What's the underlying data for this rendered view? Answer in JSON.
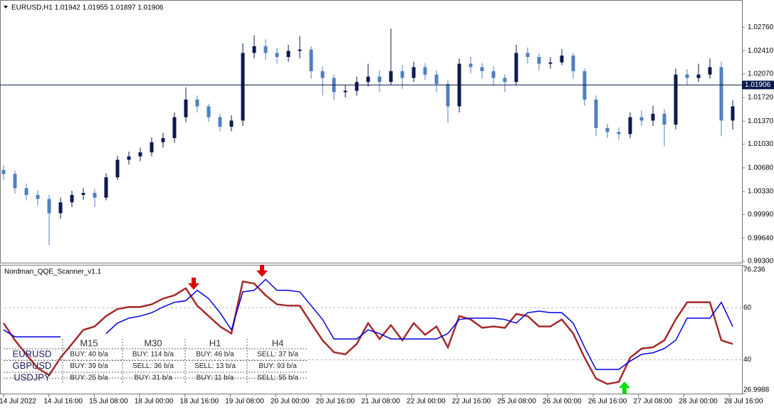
{
  "header": {
    "symbol_info": "EURUSD,H1  1.01942 1.01955 1.01897 1.01906"
  },
  "chart_data": [
    {
      "type": "candlestick",
      "up_color": "#0b1a4e",
      "down_color": "#4f7fc0",
      "open": [
        1.0065,
        1.0059,
        1.0038,
        1.0028,
        1.0022,
        1.0001,
        1.0017,
        1.0028,
        1.0031,
        1.0024,
        1.0054,
        1.008,
        1.0085,
        1.0091,
        1.0106,
        1.0112,
        1.0143,
        1.0169,
        1.0159,
        1.0143,
        1.0129,
        1.0138,
        1.0238,
        1.0248,
        1.0238,
        1.0232,
        1.0241,
        1.0243,
        1.0211,
        1.0201,
        1.018,
        1.0182,
        1.0195,
        1.0203,
        1.0195,
        1.0211,
        1.0201,
        1.0217,
        1.0206,
        1.0192,
        1.0159,
        1.0222,
        1.0217,
        1.0211,
        1.0201,
        1.0195,
        1.0238,
        1.0232,
        1.0222,
        1.0224,
        1.0234,
        1.0211,
        1.0169,
        1.0127,
        1.0121,
        1.0118,
        1.0143,
        1.0138,
        1.0148,
        1.0132,
        1.0206,
        1.0201,
        1.0206,
        1.0217,
        1.0138
      ],
      "high": [
        1.0072,
        1.0064,
        1.0045,
        1.0035,
        1.0028,
        1.0024,
        1.0034,
        1.0038,
        1.0037,
        1.006,
        1.0086,
        1.0092,
        1.0098,
        1.0113,
        1.012,
        1.015,
        1.0187,
        1.0175,
        1.0163,
        1.0148,
        1.0146,
        1.0252,
        1.0264,
        1.0258,
        1.0245,
        1.025,
        1.0263,
        1.0248,
        1.0218,
        1.0206,
        1.019,
        1.0203,
        1.0222,
        1.0212,
        1.0274,
        1.022,
        1.0225,
        1.0223,
        1.0212,
        1.0198,
        1.023,
        1.0232,
        1.0223,
        1.0218,
        1.0206,
        1.025,
        1.0246,
        1.0238,
        1.0232,
        1.0244,
        1.0238,
        1.0215,
        1.0175,
        1.0133,
        1.0128,
        1.015,
        1.0153,
        1.016,
        1.0155,
        1.0215,
        1.0214,
        1.0222,
        1.023,
        1.0225,
        1.0168
      ],
      "low": [
        1.005,
        1.003,
        1.002,
        1.0012,
        0.9954,
        0.9993,
        1.001,
        1.0021,
        1.001,
        1.002,
        1.005,
        1.0073,
        1.0078,
        1.0085,
        1.0098,
        1.0105,
        1.0136,
        1.015,
        1.0136,
        1.0122,
        1.0122,
        1.013,
        1.023,
        1.0228,
        1.0222,
        1.0225,
        1.023,
        1.02,
        1.0175,
        1.0168,
        1.0172,
        1.0175,
        1.0188,
        1.018,
        1.019,
        1.0185,
        1.0195,
        1.0198,
        1.018,
        1.0135,
        1.015,
        1.0208,
        1.02,
        1.019,
        1.018,
        1.019,
        1.0222,
        1.0212,
        1.0215,
        1.022,
        1.02,
        1.016,
        1.0115,
        1.0112,
        1.011,
        1.0112,
        1.013,
        1.013,
        1.01,
        1.0125,
        1.019,
        1.0195,
        1.02,
        1.0115,
        1.0125
      ],
      "close": [
        1.0059,
        1.0038,
        1.0028,
        1.0022,
        1.0001,
        1.0017,
        1.0028,
        1.0031,
        1.0024,
        1.0054,
        1.008,
        1.0085,
        1.0091,
        1.0106,
        1.0112,
        1.0143,
        1.0169,
        1.0159,
        1.0143,
        1.0129,
        1.0138,
        1.0238,
        1.0248,
        1.0238,
        1.0232,
        1.0241,
        1.0243,
        1.0211,
        1.0201,
        1.018,
        1.0182,
        1.0195,
        1.0203,
        1.0195,
        1.0211,
        1.0201,
        1.0217,
        1.0206,
        1.0192,
        1.0159,
        1.0222,
        1.0217,
        1.0211,
        1.0201,
        1.0195,
        1.0238,
        1.0232,
        1.0222,
        1.0224,
        1.0234,
        1.0211,
        1.0169,
        1.0127,
        1.0121,
        1.0118,
        1.0143,
        1.0138,
        1.0148,
        1.0132,
        1.0206,
        1.0201,
        1.0206,
        1.0217,
        1.0138,
        1.0159
      ],
      "ylim": [
        0.99268,
        1.0311
      ],
      "yticks": [
        {
          "value": 1.0276,
          "label": "1.02760"
        },
        {
          "value": 1.0241,
          "label": "1.02410"
        },
        {
          "value": 1.0207,
          "label": "1.02070"
        },
        {
          "value": 1.0172,
          "label": "1.01720"
        },
        {
          "value": 1.0137,
          "label": "1.01370"
        },
        {
          "value": 1.0103,
          "label": "1.01030"
        },
        {
          "value": 1.0068,
          "label": "1.00680"
        },
        {
          "value": 1.0033,
          "label": "1.00330"
        },
        {
          "value": 0.9999,
          "label": "0.99990"
        },
        {
          "value": 0.9964,
          "label": "0.99640"
        },
        {
          "value": 0.993,
          "label": "0.99300"
        }
      ],
      "current_price": {
        "value": 1.01906,
        "label": "1.01906"
      },
      "x_labels": [
        "14 Jul 2022",
        "14 Jul 16:00",
        "15 Jul 08:00",
        "18 Jul 00:00",
        "18 Jul 16:00",
        "19 Jul 08:00",
        "20 Jul 00:00",
        "20 Jul 16:00",
        "21 Jul 08:00",
        "22 Jul 00:00",
        "22 Jul 16:00",
        "25 Jul 08:00",
        "26 Jul 00:00",
        "26 Jul 16:00",
        "27 Jul 08:00",
        "28 Jul 00:00",
        "28 Jul 16:00"
      ]
    },
    {
      "type": "line",
      "title": "Nordman_QQE_Scanner_v1.1",
      "series": [
        {
          "color": "#a52a2a",
          "values": [
            54.1,
            47.5,
            42.1,
            36.8,
            34.1,
            40.8,
            46.1,
            51.5,
            52.8,
            56.8,
            59.5,
            60.3,
            60.3,
            61.3,
            63.5,
            64.8,
            67.5,
            60.8,
            56.8,
            52.8,
            50.1,
            70.1,
            69.3,
            64.8,
            61.3,
            60.8,
            60.8,
            54.1,
            47.5,
            42.9,
            42.1,
            46.1,
            54.1,
            48.0,
            53.3,
            47.5,
            54.1,
            49.6,
            52.8,
            44.8,
            56.8,
            55.5,
            52.3,
            52.8,
            52.3,
            57.6,
            56.8,
            52.8,
            52.8,
            55.5,
            50.1,
            40.8,
            32.8,
            30.7,
            31.5,
            40.8,
            44.3,
            44.8,
            47.5,
            55.5,
            62.1,
            62.1,
            62.1,
            47.5,
            46.1
          ]
        },
        {
          "color": "#0000e0",
          "values": [
            51.5,
            48.8,
            48.8,
            48.8,
            48.8,
            48.8,
            null,
            null,
            null,
            50.1,
            54.1,
            56.0,
            56.8,
            58.1,
            60.3,
            62.1,
            62.7,
            66.7,
            63.5,
            58.1,
            51.5,
            66.1,
            66.7,
            70.9,
            66.7,
            66.7,
            66.1,
            60.8,
            55.5,
            48.0,
            48.0,
            48.0,
            51.5,
            50.1,
            48.0,
            48.0,
            48.0,
            48.0,
            48.0,
            50.1,
            55.5,
            56.0,
            56.0,
            56.0,
            55.5,
            54.1,
            58.1,
            58.7,
            58.1,
            58.1,
            54.1,
            44.8,
            36.3,
            36.3,
            36.3,
            39.5,
            42.1,
            42.7,
            44.3,
            47.5,
            56.0,
            56.0,
            56.0,
            62.1,
            52.8
          ]
        }
      ],
      "ylim": [
        26.9988,
        76.236
      ],
      "yticks": [
        76.236,
        60,
        40,
        26.9988
      ],
      "grid": true,
      "table": {
        "columns": [
          "M15",
          "M30",
          "H1",
          "H4"
        ],
        "rows": [
          {
            "name": "EURUSD",
            "cells": [
              "BUY: 40 b/a",
              "BUY: 114 b/a",
              "BUY: 46 b/a",
              "SELL: 37 b/a"
            ]
          },
          {
            "name": "GBPUSD",
            "cells": [
              "BUY: 39 b/a",
              "SELL: 36 b/a",
              "SELL: 13 b/a",
              "BUY: 93 b/a"
            ]
          },
          {
            "name": "USDJPY",
            "cells": [
              "BUY: 25 b/a",
              "BUY: 31 b/a",
              "BUY: 11 b/a",
              "SELL: 55 b/a"
            ]
          }
        ]
      }
    }
  ]
}
